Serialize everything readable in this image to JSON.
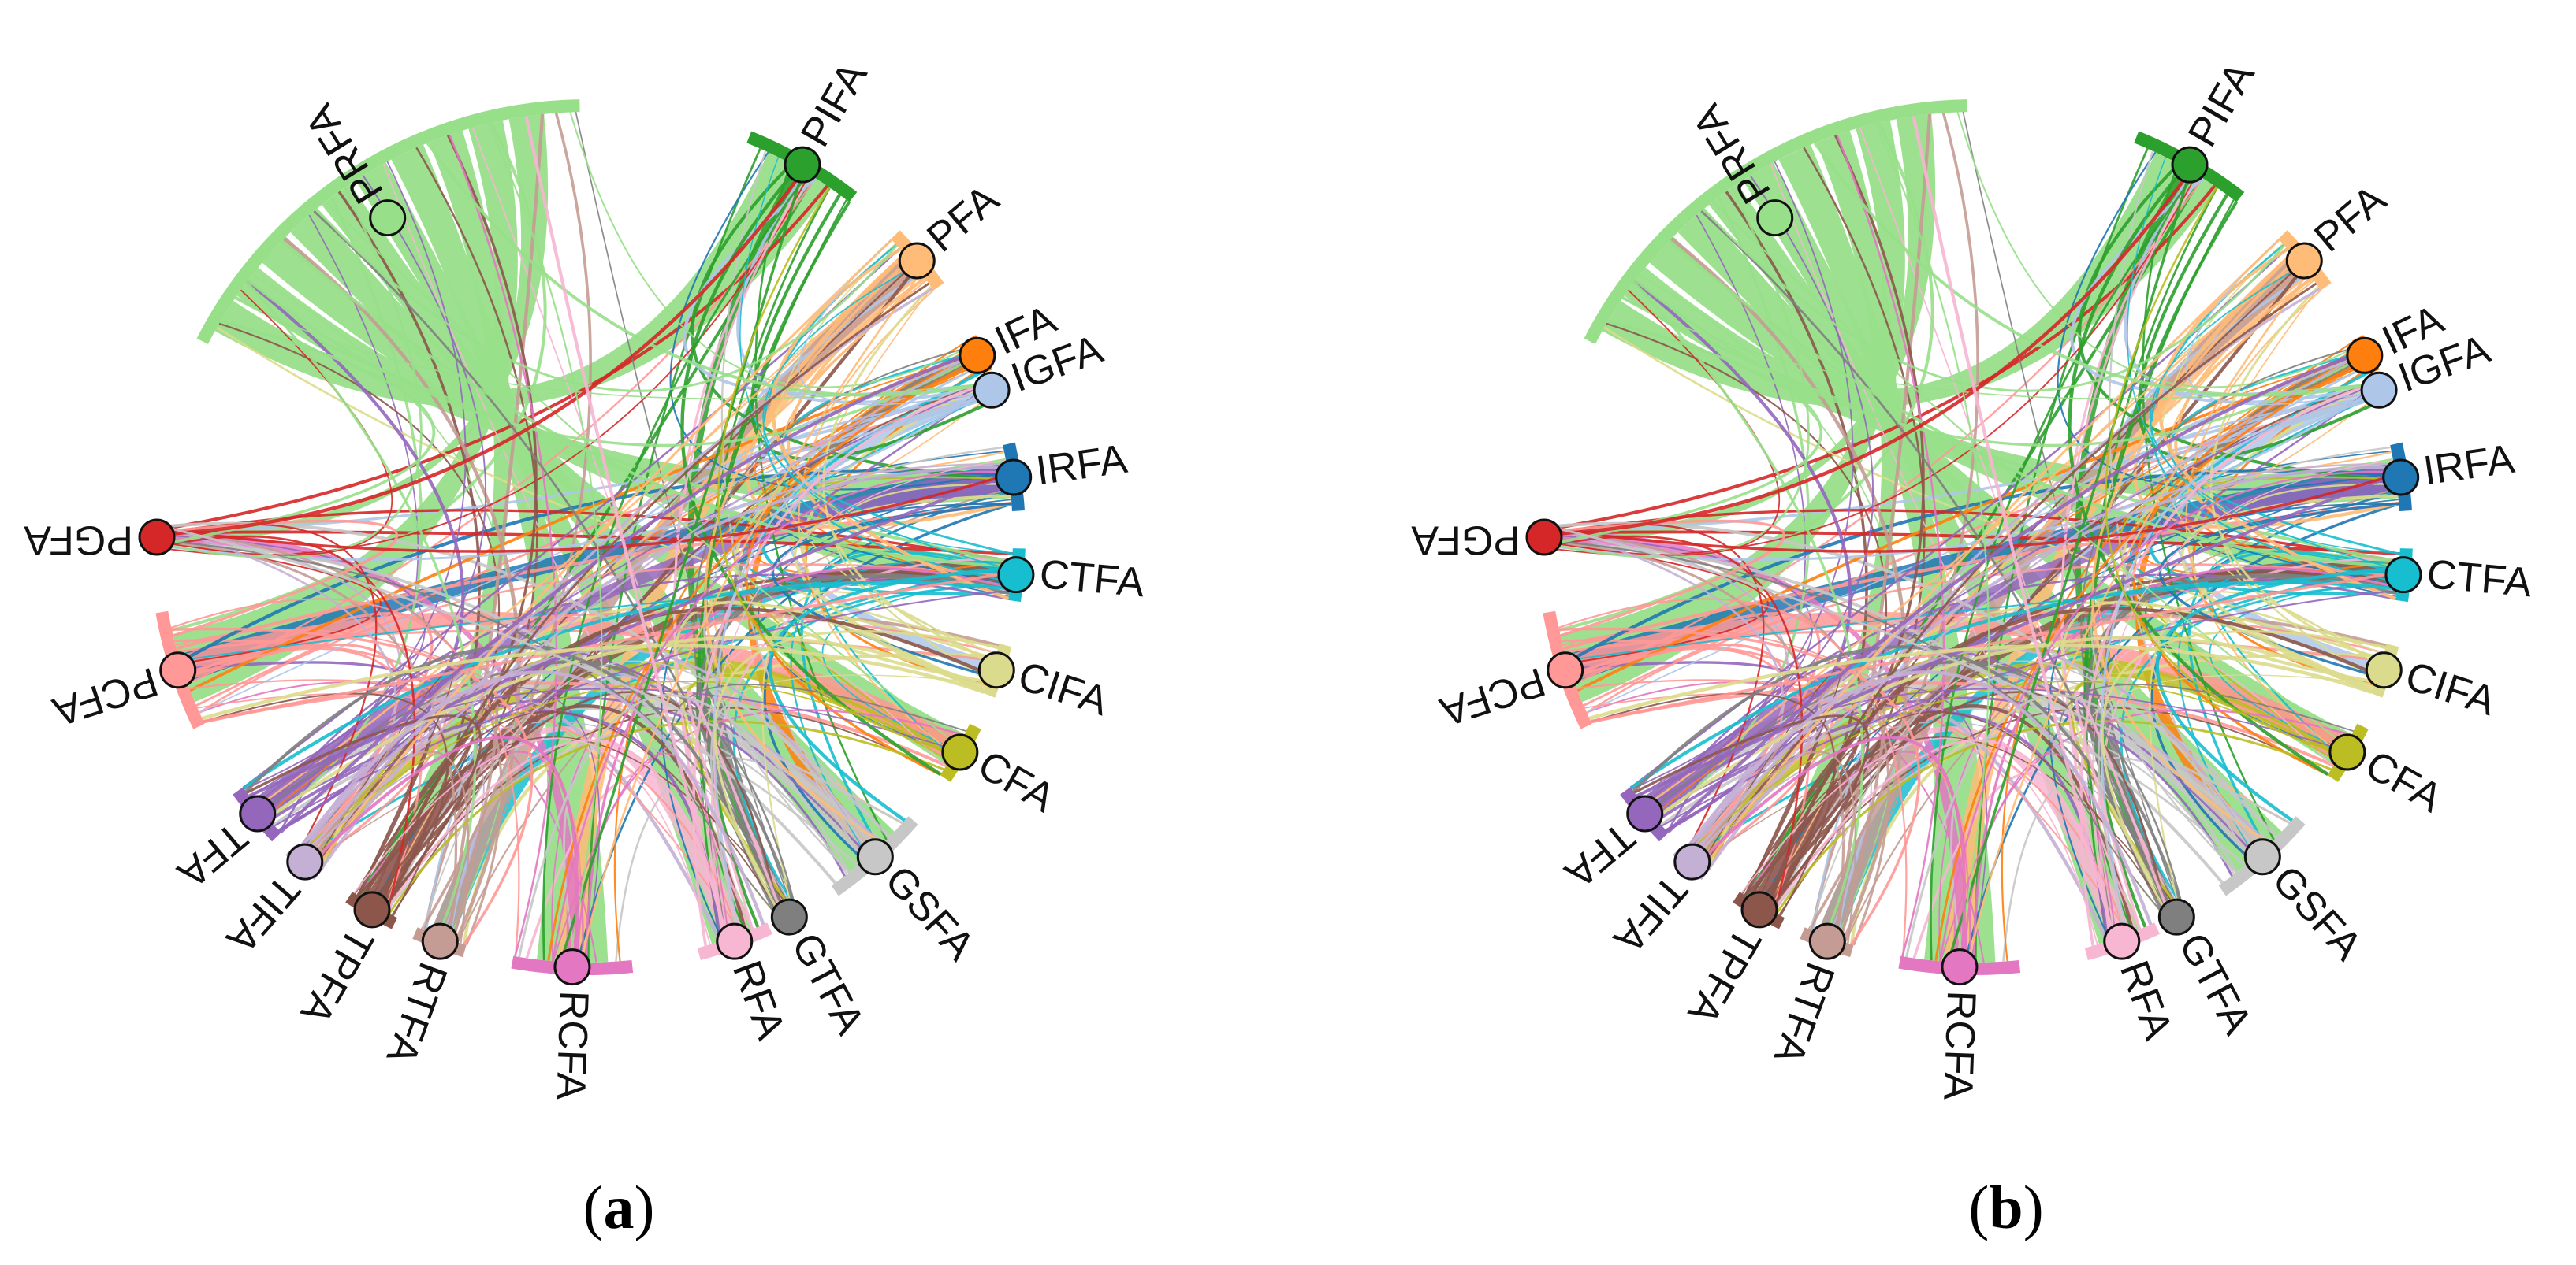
{
  "figure": {
    "panels": [
      {
        "id": "a",
        "caption_letter": "a",
        "nodes": [
          {
            "label": "PRFA",
            "angle": 238,
            "color": "#98df8a",
            "span": 62,
            "flip": false
          },
          {
            "label": "PIFA",
            "angle": 300,
            "color": "#2ca02c",
            "span": 16,
            "flip": false
          },
          {
            "label": "PFA",
            "angle": 320,
            "color": "#ffbb78",
            "span": 9,
            "flip": false
          },
          {
            "label": "IFA",
            "angle": 335,
            "color": "#ff7f0e",
            "span": 5,
            "flip": false
          },
          {
            "label": "IGFA",
            "angle": 340,
            "color": "#aec7e8",
            "span": 3,
            "flip": false
          },
          {
            "label": "IRFA",
            "angle": 352,
            "color": "#1f77b4",
            "span": 9,
            "flip": false
          },
          {
            "label": "CTFA",
            "angle": 5,
            "color": "#17becf",
            "span": 7,
            "flip": false
          },
          {
            "label": "CIFA",
            "angle": 18,
            "color": "#dbdb8d",
            "span": 7,
            "flip": false
          },
          {
            "label": "CFA",
            "angle": 30,
            "color": "#bcbd22",
            "span": 8,
            "flip": false
          },
          {
            "label": "GSFA",
            "angle": 48,
            "color": "#c7c7c7",
            "span": 14,
            "flip": false
          },
          {
            "label": "GTFA",
            "angle": 62,
            "color": "#7f7f7f",
            "span": 3,
            "flip": false
          },
          {
            "label": "RFA",
            "angle": 70,
            "color": "#f7b6d2",
            "span": 10,
            "flip": false
          },
          {
            "label": "RCFA",
            "angle": 92,
            "color": "#e377c2",
            "span": 16,
            "flip": false
          },
          {
            "label": "RTFA",
            "angle": 110,
            "color": "#c49c94",
            "span": 7,
            "flip": false
          },
          {
            "label": "TPFA",
            "angle": 120,
            "color": "#8c564b",
            "span": 7,
            "flip": false
          },
          {
            "label": "TIFA",
            "angle": 131,
            "color": "#c5b0d5",
            "span": 5,
            "flip": false
          },
          {
            "label": "TFA",
            "angle": 140,
            "color": "#9467bd",
            "span": 8,
            "flip": false
          },
          {
            "label": "PCFA",
            "angle": 162,
            "color": "#ff9896",
            "span": 16,
            "flip": true
          },
          {
            "label": "PGFA",
            "angle": 180,
            "color": "#d62728",
            "span": 3,
            "flip": true
          }
        ]
      },
      {
        "id": "b",
        "caption_letter": "b",
        "nodes": [
          {
            "label": "PRFA",
            "angle": 238,
            "color": "#98df8a",
            "span": 62,
            "flip": false
          },
          {
            "label": "PIFA",
            "angle": 300,
            "color": "#2ca02c",
            "span": 16,
            "flip": false
          },
          {
            "label": "PFA",
            "angle": 320,
            "color": "#ffbb78",
            "span": 9,
            "flip": false
          },
          {
            "label": "IFA",
            "angle": 335,
            "color": "#ff7f0e",
            "span": 5,
            "flip": false
          },
          {
            "label": "IGFA",
            "angle": 340,
            "color": "#aec7e8",
            "span": 3,
            "flip": false
          },
          {
            "label": "IRFA",
            "angle": 352,
            "color": "#1f77b4",
            "span": 9,
            "flip": false
          },
          {
            "label": "CTFA",
            "angle": 5,
            "color": "#17becf",
            "span": 7,
            "flip": false
          },
          {
            "label": "CIFA",
            "angle": 18,
            "color": "#dbdb8d",
            "span": 7,
            "flip": false
          },
          {
            "label": "CFA",
            "angle": 30,
            "color": "#bcbd22",
            "span": 8,
            "flip": false
          },
          {
            "label": "GSFA",
            "angle": 48,
            "color": "#c7c7c7",
            "span": 14,
            "flip": false
          },
          {
            "label": "GTFA",
            "angle": 62,
            "color": "#7f7f7f",
            "span": 3,
            "flip": false
          },
          {
            "label": "RFA",
            "angle": 70,
            "color": "#f7b6d2",
            "span": 10,
            "flip": false
          },
          {
            "label": "RCFA",
            "angle": 92,
            "color": "#e377c2",
            "span": 16,
            "flip": false
          },
          {
            "label": "RTFA",
            "angle": 110,
            "color": "#c49c94",
            "span": 7,
            "flip": false
          },
          {
            "label": "TPFA",
            "angle": 120,
            "color": "#8c564b",
            "span": 7,
            "flip": false
          },
          {
            "label": "TIFA",
            "angle": 131,
            "color": "#c5b0d5",
            "span": 5,
            "flip": false
          },
          {
            "label": "TFA",
            "angle": 140,
            "color": "#9467bd",
            "span": 8,
            "flip": false
          },
          {
            "label": "PCFA",
            "angle": 162,
            "color": "#ff9896",
            "span": 16,
            "flip": true
          },
          {
            "label": "PGFA",
            "angle": 180,
            "color": "#d62728",
            "span": 3,
            "flip": true
          }
        ]
      }
    ]
  }
}
